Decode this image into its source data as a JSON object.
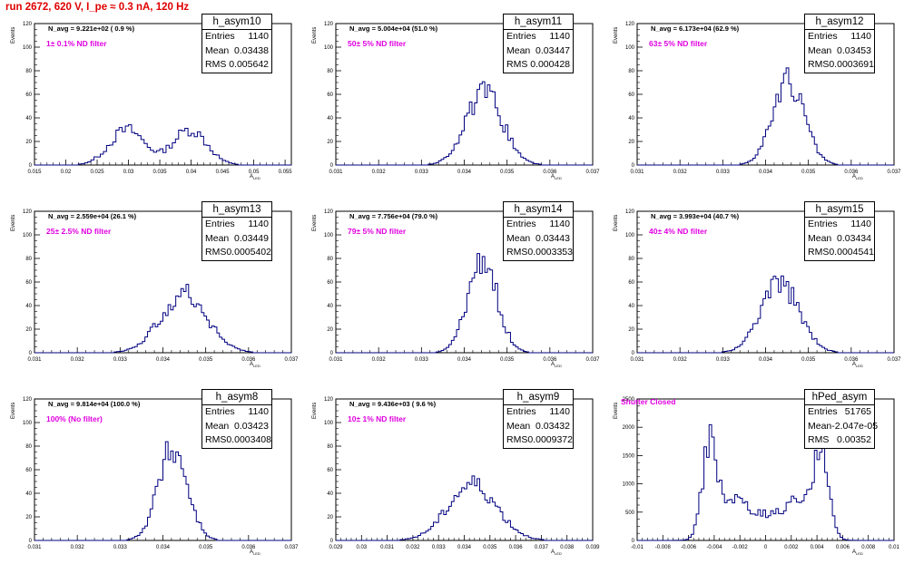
{
  "run_title": "run 2672,   620 V, I_pe ≈ 0.3 nA, 120 Hz",
  "stat_labels": {
    "entries": "Entries",
    "mean": "Mean",
    "rms": "RMS"
  },
  "axes": {
    "ylabel": "Events",
    "xlabel_main": "A",
    "xlabel_sub": "LED"
  },
  "chart_data": [
    {
      "type": "histogram",
      "name": "h_asym10",
      "n_avg": "N_avg = 9.221e+02 ( 0.9 %)",
      "filter": "1± 0.1% ND filter",
      "entries": "1140",
      "mean": "0.03438",
      "rms": "0.005642",
      "xlim": [
        0.015,
        0.056
      ],
      "xticks": [
        0.015,
        0.02,
        0.025,
        0.03,
        0.035,
        0.04,
        0.045,
        0.05,
        0.055
      ],
      "xtick_labels": [
        "0.015",
        "0.02",
        "0.025",
        "0.03",
        "0.035",
        "0.04",
        "0.045",
        "0.05",
        "0.055"
      ],
      "ylim": [
        0,
        120
      ],
      "yticks": [
        0,
        20,
        40,
        60,
        80,
        100,
        120
      ],
      "ytick_labels": [
        "0",
        "20",
        "40",
        "60",
        "80",
        "100",
        "120"
      ],
      "gauss": [
        {
          "mu": 0.0298,
          "s": 0.0028,
          "a": 30
        },
        {
          "mu": 0.0398,
          "s": 0.0027,
          "a": 30
        }
      ],
      "bin_width": 0.0005
    },
    {
      "type": "histogram",
      "name": "h_asym11",
      "n_avg": "N_avg = 5.004e+04 (51.0 %)",
      "filter": "50± 5% ND filter",
      "entries": "1140",
      "mean": "0.03447",
      "rms": "0.000428",
      "xlim": [
        0.031,
        0.037
      ],
      "xticks": [
        0.031,
        0.032,
        0.033,
        0.034,
        0.035,
        0.036,
        0.037
      ],
      "xtick_labels": [
        "0.031",
        "0.032",
        "0.033",
        "0.034",
        "0.035",
        "0.036",
        "0.037"
      ],
      "ylim": [
        0,
        120
      ],
      "yticks": [
        0,
        20,
        40,
        60,
        80,
        100,
        120
      ],
      "ytick_labels": [
        "0",
        "20",
        "40",
        "60",
        "80",
        "100",
        "120"
      ],
      "gauss": [
        {
          "mu": 0.03447,
          "s": 0.00043,
          "a": 60
        }
      ],
      "bin_width": 6e-05
    },
    {
      "type": "histogram",
      "name": "h_asym12",
      "n_avg": "N_avg = 6.173e+04 (62.9 %)",
      "filter": "63± 5% ND filter",
      "entries": "1140",
      "mean": "0.03453",
      "rms": "0.0003691",
      "xlim": [
        0.031,
        0.037
      ],
      "xticks": [
        0.031,
        0.032,
        0.033,
        0.034,
        0.035,
        0.036,
        0.037
      ],
      "xtick_labels": [
        "0.031",
        "0.032",
        "0.033",
        "0.034",
        "0.035",
        "0.036",
        "0.037"
      ],
      "ylim": [
        0,
        120
      ],
      "yticks": [
        0,
        20,
        40,
        60,
        80,
        100,
        120
      ],
      "ytick_labels": [
        "0",
        "20",
        "40",
        "60",
        "80",
        "100",
        "120"
      ],
      "gauss": [
        {
          "mu": 0.03453,
          "s": 0.00037,
          "a": 70
        }
      ],
      "bin_width": 6e-05
    },
    {
      "type": "histogram",
      "name": "h_asym13",
      "n_avg": "N_avg = 2.559e+04 (26.1 %)",
      "filter": "25± 2.5% ND filter",
      "entries": "1140",
      "mean": "0.03449",
      "rms": "0.0005402",
      "xlim": [
        0.031,
        0.037
      ],
      "xticks": [
        0.031,
        0.032,
        0.033,
        0.034,
        0.035,
        0.036,
        0.037
      ],
      "xtick_labels": [
        "0.031",
        "0.032",
        "0.033",
        "0.034",
        "0.035",
        "0.036",
        "0.037"
      ],
      "ylim": [
        0,
        120
      ],
      "yticks": [
        0,
        20,
        40,
        60,
        80,
        100,
        120
      ],
      "ytick_labels": [
        "0",
        "20",
        "40",
        "60",
        "80",
        "100",
        "120"
      ],
      "gauss": [
        {
          "mu": 0.03449,
          "s": 0.00054,
          "a": 50
        }
      ],
      "bin_width": 6e-05
    },
    {
      "type": "histogram",
      "name": "h_asym14",
      "n_avg": "N_avg = 7.756e+04 (79.0 %)",
      "filter": "79± 5% ND filter",
      "entries": "1140",
      "mean": "0.03443",
      "rms": "0.0003353",
      "xlim": [
        0.031,
        0.037
      ],
      "xticks": [
        0.031,
        0.032,
        0.033,
        0.034,
        0.035,
        0.036,
        0.037
      ],
      "xtick_labels": [
        "0.031",
        "0.032",
        "0.033",
        "0.034",
        "0.035",
        "0.036",
        "0.037"
      ],
      "ylim": [
        0,
        120
      ],
      "yticks": [
        0,
        20,
        40,
        60,
        80,
        100,
        120
      ],
      "ytick_labels": [
        "0",
        "20",
        "40",
        "60",
        "80",
        "100",
        "120"
      ],
      "gauss": [
        {
          "mu": 0.03443,
          "s": 0.00034,
          "a": 78
        }
      ],
      "bin_width": 6e-05
    },
    {
      "type": "histogram",
      "name": "h_asym15",
      "n_avg": "N_avg = 3.993e+04 (40.7 %)",
      "filter": "40± 4% ND filter",
      "entries": "1140",
      "mean": "0.03434",
      "rms": "0.0004541",
      "xlim": [
        0.031,
        0.037
      ],
      "xticks": [
        0.031,
        0.032,
        0.033,
        0.034,
        0.035,
        0.036,
        0.037
      ],
      "xtick_labels": [
        "0.031",
        "0.032",
        "0.033",
        "0.034",
        "0.035",
        "0.036",
        "0.037"
      ],
      "ylim": [
        0,
        120
      ],
      "yticks": [
        0,
        20,
        40,
        60,
        80,
        100,
        120
      ],
      "ytick_labels": [
        "0",
        "20",
        "40",
        "60",
        "80",
        "100",
        "120"
      ],
      "gauss": [
        {
          "mu": 0.03434,
          "s": 0.00045,
          "a": 58
        }
      ],
      "bin_width": 6e-05
    },
    {
      "type": "histogram",
      "name": "h_asym8",
      "n_avg": "N_avg = 9.814e+04 (100.0 %)",
      "filter": "100% (No filter)",
      "entries": "1140",
      "mean": "0.03423",
      "rms": "0.0003408",
      "xlim": [
        0.031,
        0.037
      ],
      "xticks": [
        0.031,
        0.032,
        0.033,
        0.034,
        0.035,
        0.036,
        0.037
      ],
      "xtick_labels": [
        "0.031",
        "0.032",
        "0.033",
        "0.034",
        "0.035",
        "0.036",
        "0.037"
      ],
      "ylim": [
        0,
        120
      ],
      "yticks": [
        0,
        20,
        40,
        60,
        80,
        100,
        120
      ],
      "ytick_labels": [
        "0",
        "20",
        "40",
        "60",
        "80",
        "100",
        "120"
      ],
      "gauss": [
        {
          "mu": 0.03423,
          "s": 0.00034,
          "a": 78
        }
      ],
      "bin_width": 6e-05
    },
    {
      "type": "histogram",
      "name": "h_asym9",
      "n_avg": "N_avg = 9.436e+03 ( 9.6 %)",
      "filter": "10± 1% ND filter",
      "entries": "1140",
      "mean": "0.03432",
      "rms": "0.0009372",
      "xlim": [
        0.029,
        0.039
      ],
      "xticks": [
        0.029,
        0.03,
        0.031,
        0.032,
        0.033,
        0.034,
        0.035,
        0.036,
        0.037,
        0.038,
        0.039
      ],
      "xtick_labels": [
        "0.029",
        "0.03",
        "0.031",
        "0.032",
        "0.033",
        "0.034",
        "0.035",
        "0.036",
        "0.037",
        "0.038",
        "0.039"
      ],
      "ylim": [
        0,
        120
      ],
      "yticks": [
        0,
        20,
        40,
        60,
        80,
        100,
        120
      ],
      "ytick_labels": [
        "0",
        "20",
        "40",
        "60",
        "80",
        "100",
        "120"
      ],
      "gauss": [
        {
          "mu": 0.03432,
          "s": 0.00094,
          "a": 48
        }
      ],
      "bin_width": 0.0001
    },
    {
      "type": "histogram",
      "name": "hPed_asym",
      "n_avg": "",
      "filter": "Shutter Closed",
      "entries": "51765",
      "mean": "-2.047e-05",
      "rms": "0.00352",
      "xlim": [
        -0.01,
        0.01
      ],
      "xticks": [
        -0.01,
        -0.008,
        -0.006,
        -0.004,
        -0.002,
        0,
        0.002,
        0.004,
        0.006,
        0.008,
        0.01
      ],
      "xtick_labels": [
        "-0.01",
        "-0.008",
        "-0.006",
        "-0.004",
        "-0.002",
        "0",
        "0.002",
        "0.004",
        "0.006",
        "0.008",
        "0.01"
      ],
      "ylim": [
        0,
        2500
      ],
      "yticks": [
        0,
        500,
        1000,
        1500,
        2000,
        2500
      ],
      "ytick_labels": [
        "0",
        "500",
        "1000",
        "1500",
        "2000",
        "2500"
      ],
      "gauss": [
        {
          "mu": -0.0044,
          "s": 0.00055,
          "a": 1500
        },
        {
          "mu": 0.0044,
          "s": 0.00055,
          "a": 1500
        },
        {
          "mu": -0.0028,
          "s": 0.0011,
          "a": 550
        },
        {
          "mu": 0.0028,
          "s": 0.0011,
          "a": 550
        },
        {
          "mu": 0,
          "s": 0.002,
          "a": 430
        }
      ],
      "bin_width": 0.0002
    }
  ]
}
